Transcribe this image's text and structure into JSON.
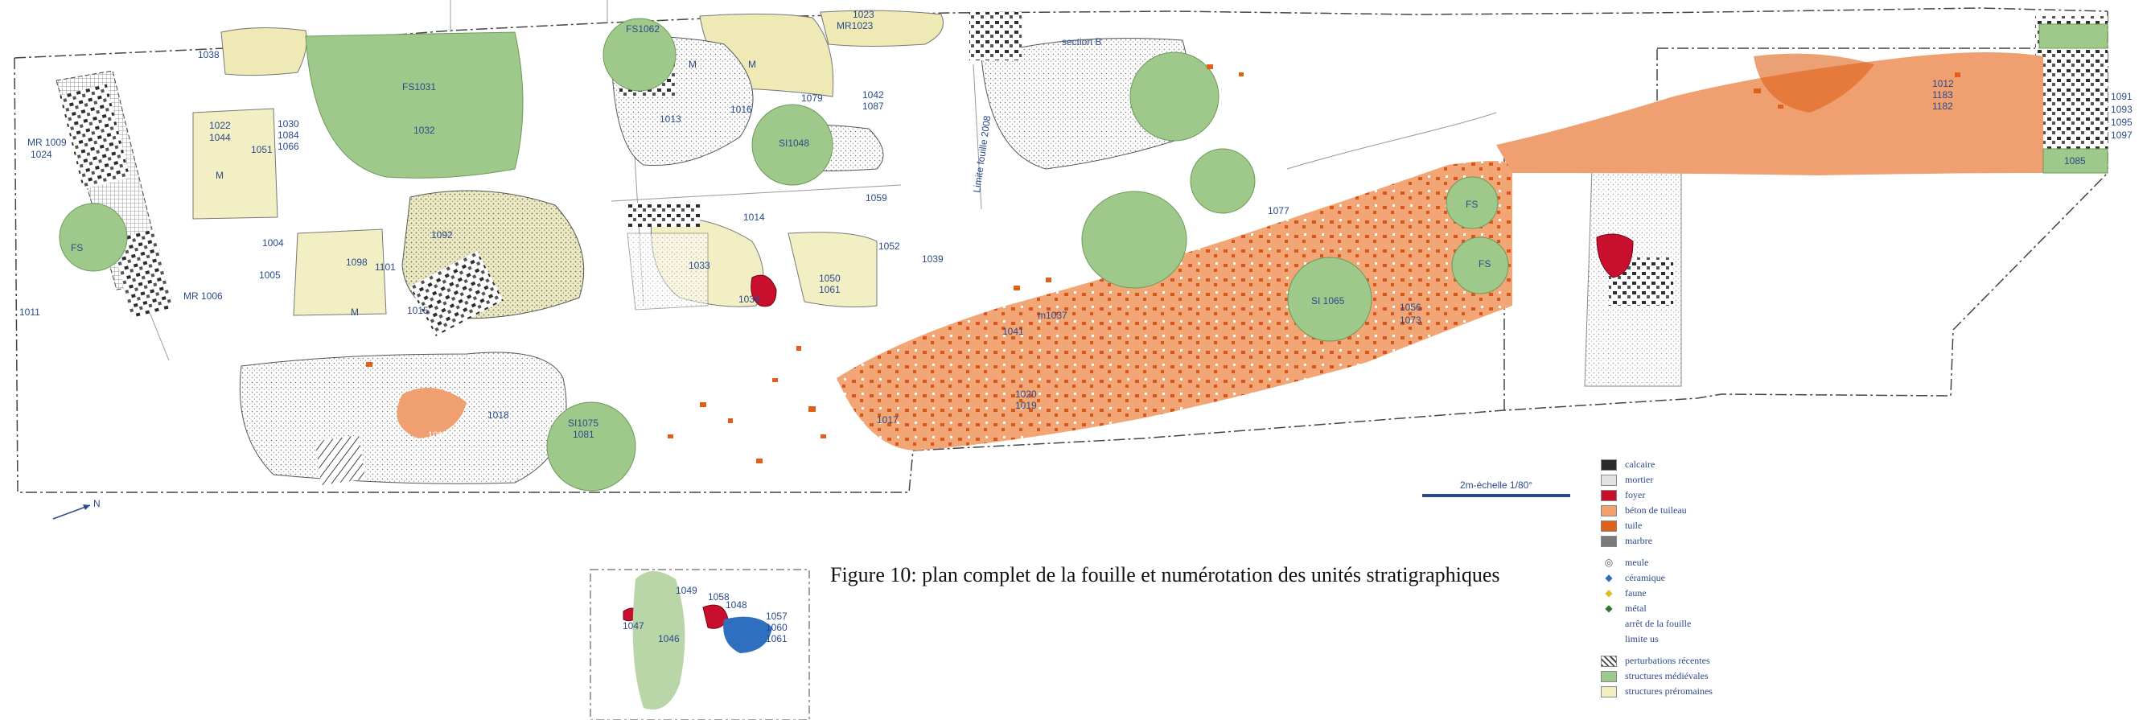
{
  "caption": "Figure 10: plan complet de la fouille et numérotation des unités stratigraphiques",
  "scale_label": "2m-échelle 1/80°",
  "north_label": "N",
  "colors": {
    "calcaire": "#2b2b2b",
    "mortier": "#e6e6e6",
    "foyer": "#c8102e",
    "beton": "#f0a070",
    "tuile": "#e0601a",
    "medieval": "#9fc98a",
    "preromain": "#f3efc4",
    "ceramique": "#2f6fc0",
    "label": "#2a4a8a"
  },
  "legend": {
    "materials": [
      {
        "label": "calcaire",
        "color": "#2b2b2b"
      },
      {
        "label": "mortier",
        "color": "#e2e2e2"
      },
      {
        "label": "foyer",
        "color": "#c8102e"
      },
      {
        "label": "béton de tuileau",
        "color": "#f0a070"
      },
      {
        "label": "tuile",
        "color": "#e0601a"
      },
      {
        "label": "marbre",
        "color": "#7a7a7a"
      }
    ],
    "symbols": [
      {
        "label": "meule",
        "symbol": "◎",
        "color": "#555555"
      },
      {
        "label": "céramique",
        "symbol": "◆",
        "color": "#2f6fc0"
      },
      {
        "label": "faune",
        "symbol": "◆",
        "color": "#d8c020"
      },
      {
        "label": "métal",
        "symbol": "◆",
        "color": "#2a7a2a"
      },
      {
        "label": "arrêt de la fouille",
        "symbol": "",
        "color": "#2a4a8a"
      },
      {
        "label": "limite us",
        "symbol": "",
        "color": "#2a4a8a"
      }
    ],
    "structures": [
      {
        "label": "perturbations récentes",
        "color": "#ffffff",
        "hatch": true
      },
      {
        "label": "structures médiévales",
        "color": "#9fc98a"
      },
      {
        "label": "structures préromaines",
        "color": "#f3efc4"
      }
    ]
  },
  "labels": {
    "l1038": "1038",
    "l1022": "1022",
    "l1044": "1044",
    "l1030": "1030",
    "l1084": "1084",
    "l1066": "1066",
    "l1051": "1051",
    "mr1009": "MR 1009",
    "l1024": "1024",
    "fs_left": "FS",
    "l1011": "1011",
    "mr1006": "MR 1006",
    "l1004": "1004",
    "l1005": "1005",
    "l1098": "1098",
    "l1101": "1101",
    "m1": "M",
    "m2": "M",
    "l1015": "1015",
    "l1092": "1092",
    "fs1031": "FS1031",
    "l1032": "1032",
    "fs1062": "FS1062",
    "l1013": "1013",
    "l1016": "1016",
    "m3": "M",
    "m4": "M",
    "si1048": "SI1048",
    "l1079": "1079",
    "l1042": "1042",
    "l1087": "1087",
    "l1023": "1023",
    "mr1023": "MR1023",
    "section_b": "section B",
    "l1033": "1033",
    "l1034": "1034",
    "l1014": "1014",
    "l1050": "1050",
    "l1061b": "1061",
    "l1052": "1052",
    "l1059": "1059",
    "l1039": "1039",
    "limite": "Limite fouille 2008",
    "l1018": "1018",
    "l1019": "1019",
    "si1075": "SI1075",
    "l1081": "1081",
    "l1017": "1017",
    "l1041": "1041",
    "m1037": "m1037",
    "l1020": "1020",
    "l1019b": "1019",
    "l1077": "1077",
    "si1065": "SI 1065",
    "l1056": "1056",
    "l1073": "1073",
    "fs_r1": "FS",
    "fs_r2": "FS",
    "l1012": "1012",
    "l1183": "1183",
    "l1182": "1182",
    "l1091": "1091",
    "l1093": "1093",
    "l1095": "1095",
    "l1097": "1097",
    "l1085": "1085",
    "l1049": "1049",
    "l1047": "1047",
    "l1058": "1058",
    "l1048": "1048",
    "l1057": "1057",
    "l1060": "1060",
    "l1061": "1061",
    "l1046": "1046"
  }
}
